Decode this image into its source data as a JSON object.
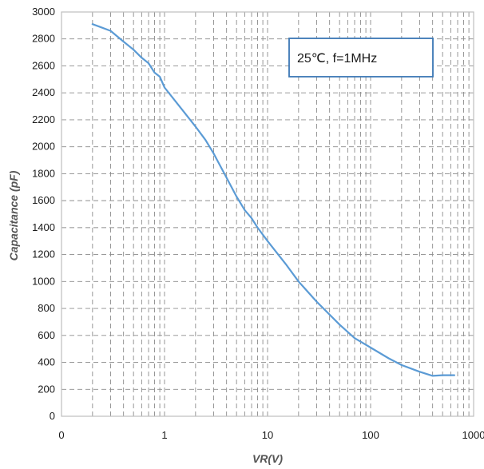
{
  "chart_data": {
    "type": "line",
    "title": "",
    "xlabel": "VR(V)",
    "ylabel": "Capacitance (pF)",
    "x_scale": "log",
    "xlim": [
      0.1,
      1000
    ],
    "ylim": [
      0,
      3000
    ],
    "x_ticks": [
      0.1,
      1,
      10,
      100,
      1000
    ],
    "x_tick_labels": [
      "0",
      "1",
      "10",
      "100",
      "1000"
    ],
    "y_ticks": [
      0,
      200,
      400,
      600,
      800,
      1000,
      1200,
      1400,
      1600,
      1800,
      2000,
      2200,
      2400,
      2600,
      2800,
      3000
    ],
    "y_tick_labels": [
      "0",
      "200",
      "400",
      "600",
      "800",
      "1000",
      "1200",
      "1400",
      "1600",
      "1800",
      "2000",
      "2200",
      "2400",
      "2600",
      "2800",
      "3000"
    ],
    "grid": true,
    "grid_style": "dashed",
    "annotation": "25℃, f=1MHz",
    "series": [
      {
        "color": "#5b9bd5",
        "x": [
          0.2,
          0.3,
          0.4,
          0.5,
          0.6,
          0.7,
          0.8,
          0.9,
          1,
          1.5,
          2,
          2.5,
          3,
          4,
          5,
          6,
          7,
          8,
          10,
          15,
          20,
          30,
          50,
          70,
          100,
          150,
          200,
          300,
          400,
          500,
          650
        ],
        "y": [
          2910,
          2860,
          2780,
          2720,
          2660,
          2620,
          2550,
          2520,
          2440,
          2270,
          2150,
          2050,
          1950,
          1770,
          1630,
          1530,
          1470,
          1400,
          1300,
          1130,
          1000,
          850,
          680,
          580,
          510,
          430,
          380,
          330,
          300,
          305,
          305
        ]
      }
    ]
  }
}
